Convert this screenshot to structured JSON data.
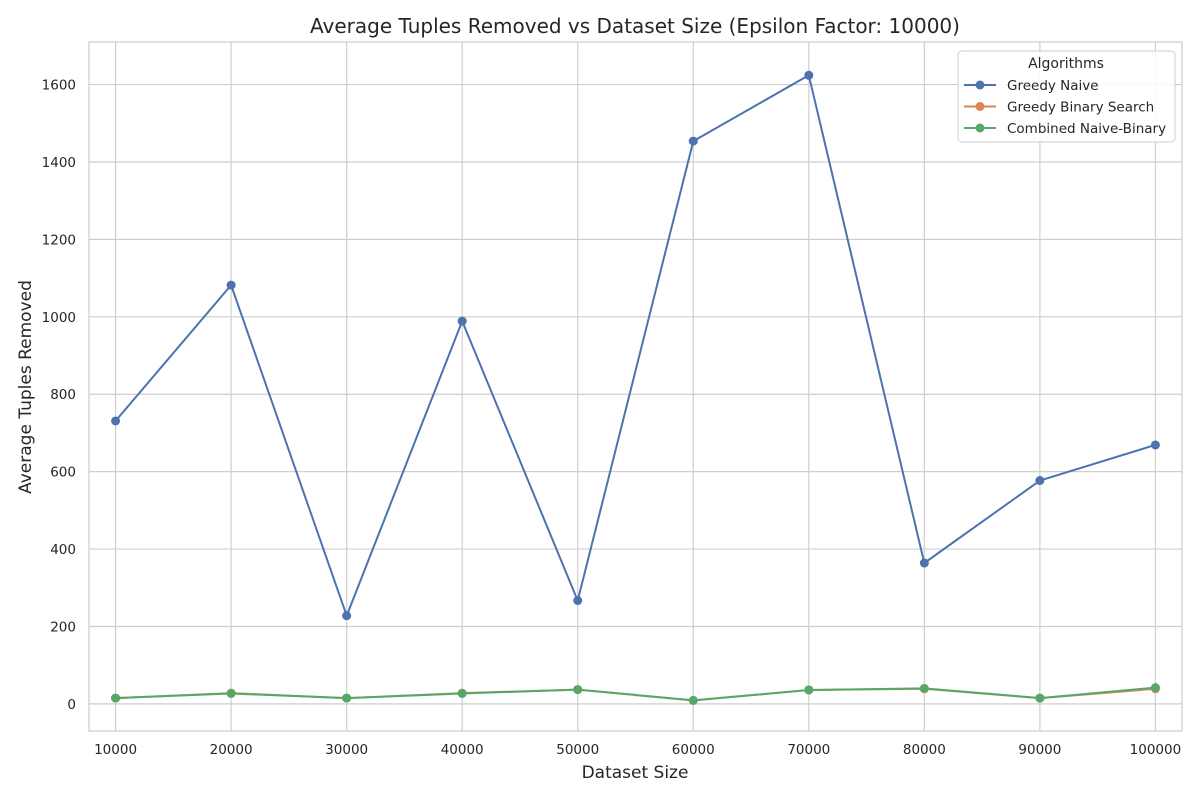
{
  "chart_data": {
    "type": "line",
    "title": "Average Tuples Removed vs Dataset Size (Epsilon Factor: 10000)",
    "xlabel": "Dataset Size",
    "ylabel": "Average Tuples Removed",
    "x": [
      10000,
      20000,
      30000,
      40000,
      50000,
      60000,
      70000,
      80000,
      90000,
      100000
    ],
    "xticks": [
      "10000",
      "20000",
      "30000",
      "40000",
      "50000",
      "60000",
      "70000",
      "80000",
      "90000",
      "100000"
    ],
    "yticks": [
      "0",
      "200",
      "400",
      "600",
      "800",
      "1000",
      "1200",
      "1400",
      "1600"
    ],
    "ylim": [
      -70,
      1710
    ],
    "grid": true,
    "legend": {
      "title": "Algorithms",
      "position": "top-right"
    },
    "series": [
      {
        "name": "Greedy Naive",
        "color": "#4c72b0",
        "values": [
          731,
          1082,
          228,
          989,
          267,
          1454,
          1624,
          364,
          577,
          669
        ]
      },
      {
        "name": "Greedy Binary Search",
        "color": "#dd8452",
        "values": [
          15,
          28,
          15,
          28,
          37,
          9,
          36,
          39,
          15,
          39
        ]
      },
      {
        "name": "Combined Naive-Binary",
        "color": "#55a868",
        "values": [
          15,
          27,
          15,
          27,
          37,
          9,
          36,
          40,
          15,
          42
        ]
      }
    ]
  }
}
